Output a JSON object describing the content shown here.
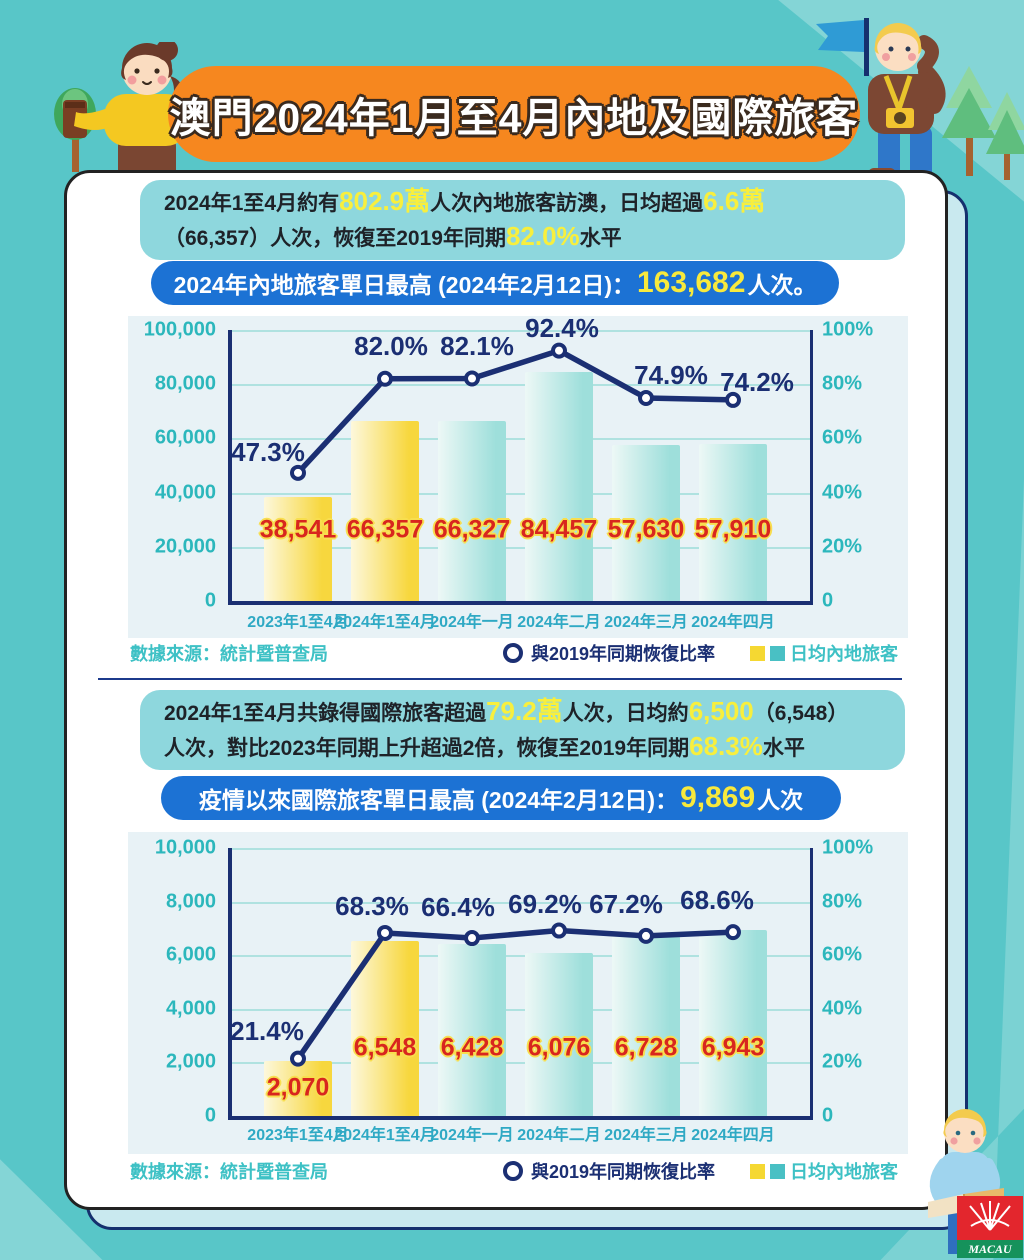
{
  "title": "澳門2024年1月至4月內地及國際旅客",
  "sections": [
    {
      "intro": {
        "seg1": "2024年1至4月約有",
        "hl1": "802.9萬",
        "seg2": "人次內地旅客訪澳，日均超過",
        "hl2": "6.6萬",
        "seg3": "（66,357）人次，恢復至2019年同期",
        "hl3": "82.0%",
        "seg4": "水平"
      },
      "banner": {
        "seg1": "2024年內地旅客單日最高 (2024年2月12日)：",
        "hl": "163,682",
        "seg2": "人次。"
      },
      "footer": {
        "source": "數據來源：統計暨普查局",
        "legend_line": "與2019年同期恢復比率",
        "legend_bar": "日均內地旅客"
      }
    },
    {
      "intro": {
        "seg1": "2024年1至4月共錄得國際旅客超過",
        "hl1": "79.2萬",
        "seg2": "人次，日均約",
        "hl2": "6,500",
        "seg3": "（6,548）",
        "seg4": "人次，對比2023年同期上升超過2倍，恢復至2019年同期",
        "hl3": "68.3%",
        "seg5": "水平"
      },
      "banner": {
        "seg1": "疫情以來國際旅客單日最高 (2024年2月12日)：",
        "hl": "9,869",
        "seg2": "人次"
      },
      "footer": {
        "source": "數據來源：統計暨普查局",
        "legend_line": "與2019年同期恢復比率",
        "legend_bar": "日均內地旅客"
      }
    }
  ],
  "chart_data": [
    {
      "type": "bar+line",
      "categories": [
        "2023年1至4月",
        "2024年1至4月",
        "2024年一月",
        "2024年二月",
        "2024年三月",
        "2024年四月"
      ],
      "series": [
        {
          "name": "日均內地旅客",
          "type": "bar",
          "values": [
            38541,
            66357,
            66327,
            84457,
            57630,
            57910
          ],
          "labels": [
            "38,541",
            "66,357",
            "66,327",
            "84,457",
            "57,630",
            "57,910"
          ]
        },
        {
          "name": "與2019年同期恢復比率",
          "type": "line",
          "values": [
            47.3,
            82.0,
            82.1,
            92.4,
            74.9,
            74.2
          ],
          "labels": [
            "47.3%",
            "82.0%",
            "82.1%",
            "92.4%",
            "74.9%",
            "74.2%"
          ]
        }
      ],
      "highlight_bars": [
        0,
        1
      ],
      "left_axis": {
        "ticks": [
          "0",
          "20,000",
          "40,000",
          "60,000",
          "80,000",
          "100,000"
        ],
        "max": 100000
      },
      "right_axis": {
        "ticks": [
          "0",
          "20%",
          "40%",
          "60%",
          "80%",
          "100%"
        ],
        "max": 100
      },
      "grid": true,
      "legend_position": "bottom"
    },
    {
      "type": "bar+line",
      "categories": [
        "2023年1至4月",
        "2024年1至4月",
        "2024年一月",
        "2024年二月",
        "2024年三月",
        "2024年四月"
      ],
      "series": [
        {
          "name": "日均內地旅客",
          "type": "bar",
          "values": [
            2070,
            6548,
            6428,
            6076,
            6728,
            6943
          ],
          "labels": [
            "2,070",
            "6,548",
            "6,428",
            "6,076",
            "6,728",
            "6,943"
          ]
        },
        {
          "name": "與2019年同期恢復比率",
          "type": "line",
          "values": [
            21.4,
            68.3,
            66.4,
            69.2,
            67.2,
            68.6
          ],
          "labels": [
            "21.4%",
            "68.3%",
            "66.4%",
            "69.2%",
            "67.2%",
            "68.6%"
          ]
        }
      ],
      "highlight_bars": [
        0,
        1
      ],
      "left_axis": {
        "ticks": [
          "0",
          "2,000",
          "4,000",
          "6,000",
          "8,000",
          "10,000"
        ],
        "max": 10000
      },
      "right_axis": {
        "ticks": [
          "0",
          "20%",
          "40%",
          "60%",
          "80%",
          "100%"
        ],
        "max": 100
      },
      "grid": true,
      "legend_position": "bottom"
    }
  ],
  "logo_text": "MACAU",
  "colors": {
    "background": "#58C6C8",
    "card": "#FFFFFF",
    "card_shadow": "#C9E9EF",
    "title_banner": "#F6871F",
    "textbox": "#8ED7DD",
    "blue_banner": "#1C72D4",
    "highlight_yellow": "#F8EF3D",
    "bar_yellow": "#F7D73E",
    "bar_teal": "#9EDFDB",
    "line_navy": "#1B2F73",
    "bar_value_red": "#D8261E",
    "axis_teal": "#2CB7BC"
  }
}
